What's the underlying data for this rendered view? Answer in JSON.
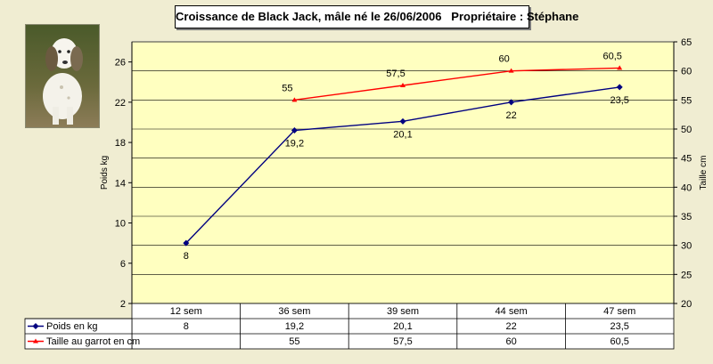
{
  "chart_data": {
    "type": "line",
    "title": "Croissance de Black Jack, mâle né le 26/06/2006   Propriétaire : Stéphane",
    "categories": [
      "12 sem",
      "36 sem",
      "39 sem",
      "44 sem",
      "47 sem"
    ],
    "y_left": {
      "label": "Poids kg",
      "range": [
        2,
        28
      ],
      "ticks": [
        "2",
        "6",
        "10",
        "14",
        "18",
        "22",
        "26"
      ],
      "tick_values": [
        2,
        6,
        10,
        14,
        18,
        22,
        26
      ]
    },
    "y_right": {
      "label": "Taille cm",
      "range": [
        20,
        65
      ],
      "ticks": [
        "20",
        "25",
        "30",
        "35",
        "40",
        "45",
        "50",
        "55",
        "60",
        "65"
      ],
      "tick_values": [
        20,
        25,
        30,
        35,
        40,
        45,
        50,
        55,
        60,
        65
      ]
    },
    "grid": true,
    "legend_placement": "bottom-left table",
    "series": [
      {
        "name": "Poids en kg",
        "axis": "left",
        "color": "#000080",
        "values": [
          8,
          19.2,
          20.1,
          22,
          23.5
        ],
        "labels": [
          "8",
          "19,2",
          "20,1",
          "22",
          "23,5"
        ]
      },
      {
        "name": "Taille au garrot en cm",
        "axis": "right",
        "color": "#ff0000",
        "values": [
          null,
          55,
          57.5,
          60,
          60.5
        ],
        "labels": [
          "",
          "55",
          "57,5",
          "60",
          "60,5"
        ]
      }
    ]
  },
  "photo": {
    "icon": "dog-photo-icon"
  }
}
